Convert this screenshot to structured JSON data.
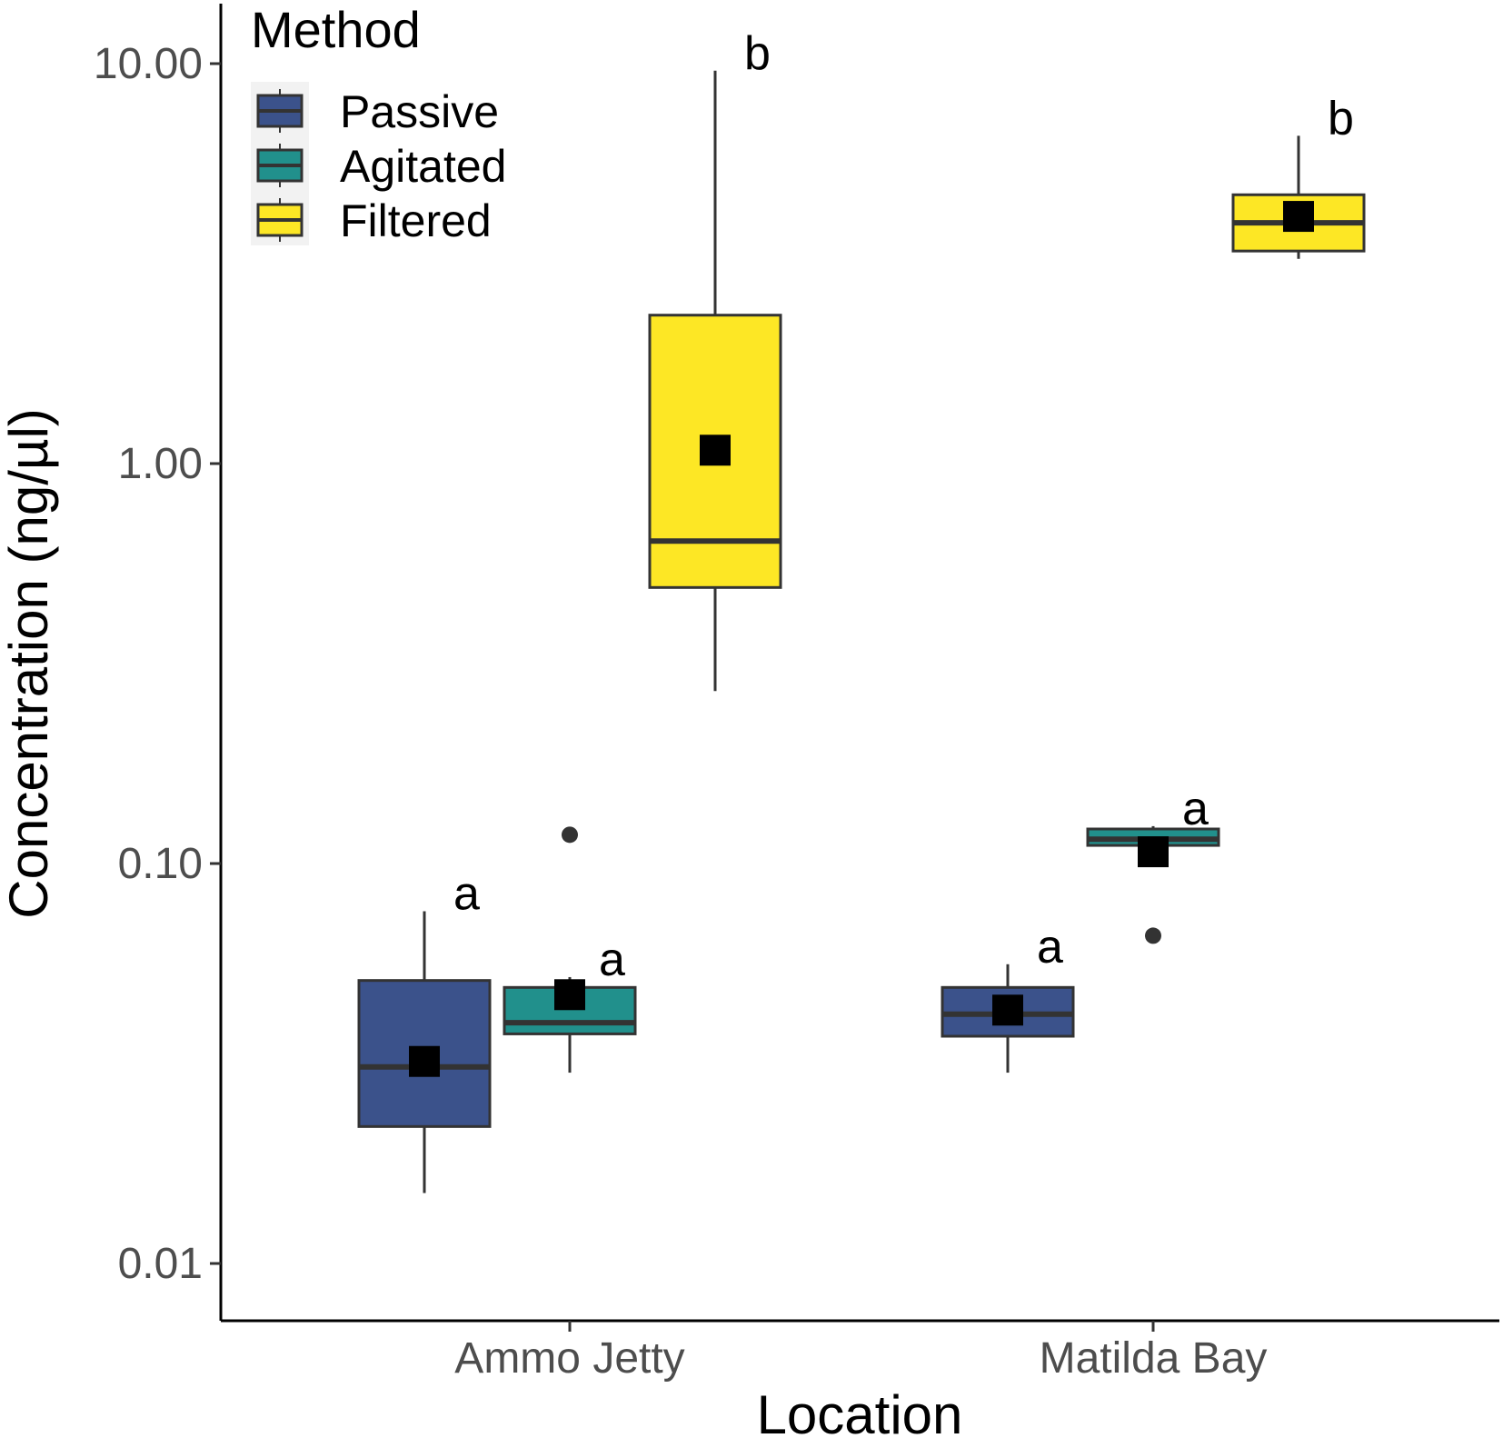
{
  "chart_data": {
    "type": "box",
    "xlabel": "Location",
    "ylabel": "Concentration (ng/µl)",
    "yscale": "log10",
    "ylim": [
      0.007,
      14
    ],
    "yticks": [
      {
        "value": 0.01,
        "label": "0.01"
      },
      {
        "value": 0.1,
        "label": "0.10"
      },
      {
        "value": 1,
        "label": "1.00"
      },
      {
        "value": 10,
        "label": "10.00"
      }
    ],
    "categories": [
      "Ammo Jetty",
      "Matilda Bay"
    ],
    "legend": {
      "title": "Method",
      "position": "top-left",
      "items": [
        {
          "name": "Passive",
          "color": "#3b528b"
        },
        {
          "name": "Agitated",
          "color": "#21908c"
        },
        {
          "name": "Filtered",
          "color": "#fde725"
        }
      ]
    },
    "series": [
      {
        "name": "Passive",
        "color": "#3b528b",
        "boxes": [
          {
            "category": "Ammo Jetty",
            "whisker_low": 0.015,
            "q1": 0.022,
            "median": 0.031,
            "q3": 0.051,
            "whisker_high": 0.076,
            "mean": 0.032,
            "outliers": [],
            "label": "a"
          },
          {
            "category": "Matilda Bay",
            "whisker_low": 0.03,
            "q1": 0.037,
            "median": 0.042,
            "q3": 0.049,
            "whisker_high": 0.056,
            "mean": 0.043,
            "outliers": [],
            "label": "a"
          }
        ]
      },
      {
        "name": "Agitated",
        "color": "#21908c",
        "boxes": [
          {
            "category": "Ammo Jetty",
            "whisker_low": 0.03,
            "q1": 0.0375,
            "median": 0.04,
            "q3": 0.049,
            "whisker_high": 0.052,
            "mean": 0.047,
            "outliers": [
              0.118
            ],
            "label": "a"
          },
          {
            "category": "Matilda Bay",
            "whisker_low": 0.11,
            "q1": 0.111,
            "median": 0.115,
            "q3": 0.122,
            "whisker_high": 0.124,
            "mean": 0.107,
            "outliers": [
              0.066
            ],
            "label": "a"
          }
        ]
      },
      {
        "name": "Filtered",
        "color": "#fde725",
        "boxes": [
          {
            "category": "Ammo Jetty",
            "whisker_low": 0.27,
            "q1": 0.49,
            "median": 0.64,
            "q3": 2.35,
            "whisker_high": 9.6,
            "mean": 1.08,
            "outliers": [],
            "label": "b"
          },
          {
            "category": "Matilda Bay",
            "whisker_low": 3.25,
            "q1": 3.4,
            "median": 4.0,
            "q3": 4.7,
            "whisker_high": 6.6,
            "mean": 4.15,
            "outliers": [],
            "label": "b"
          }
        ]
      }
    ]
  }
}
